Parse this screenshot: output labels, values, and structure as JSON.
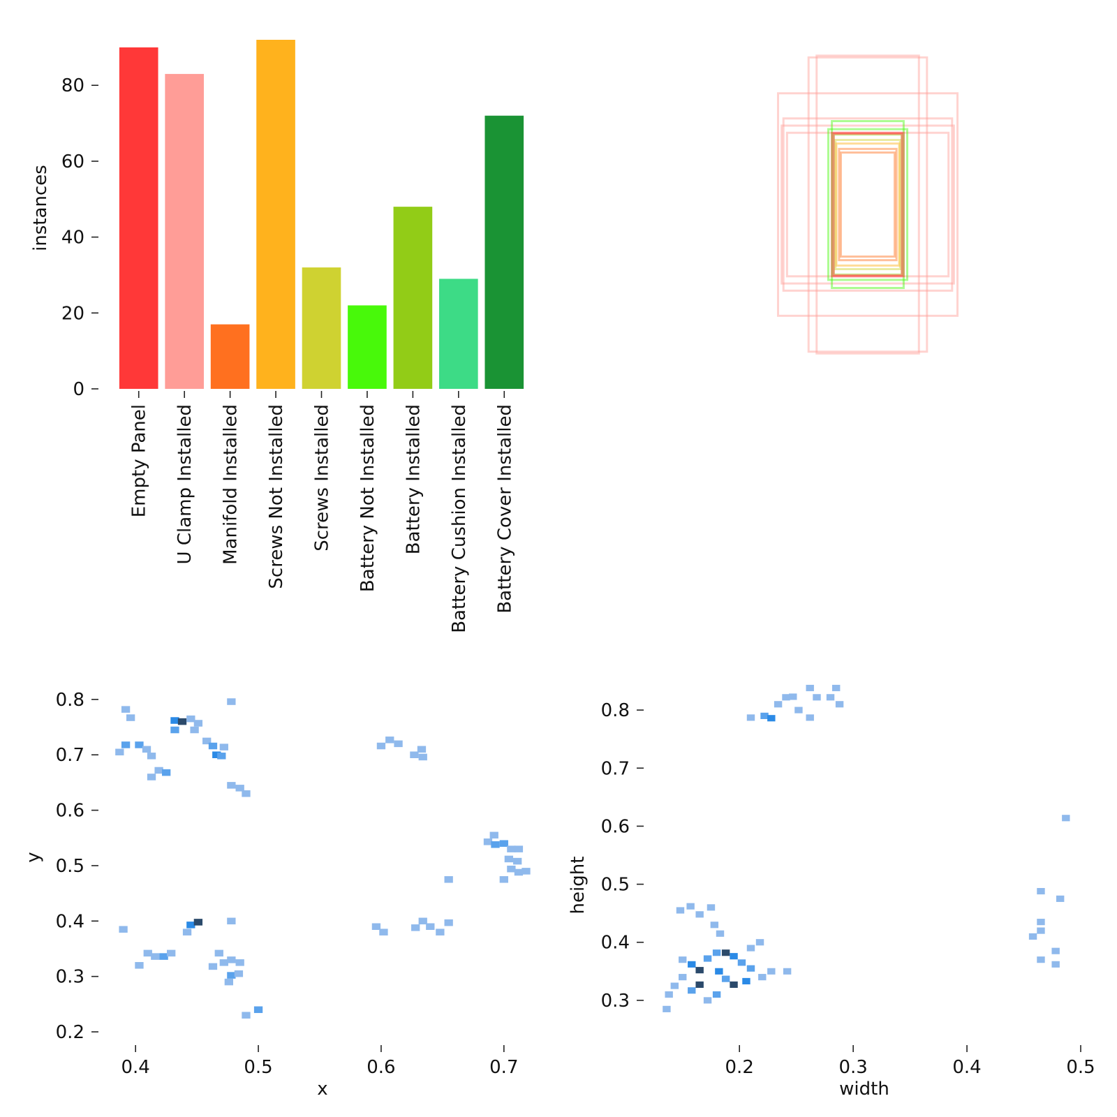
{
  "chart_data": [
    {
      "type": "bar",
      "ylabel": "instances",
      "ylim": [
        0,
        92
      ],
      "yticks": [
        "0",
        "20",
        "40",
        "60",
        "80"
      ],
      "categories": [
        "Empty Panel",
        "U Clamp Installed",
        "Manifold Installed",
        "Screws Not Installed",
        "Screws Installed",
        "Battery Not Installed",
        "Battery Installed",
        "Battery Cushion Installed",
        "Battery Cover Installed"
      ],
      "values": [
        90,
        83,
        17,
        92,
        32,
        22,
        48,
        29,
        72
      ],
      "colors": [
        "#ff3838",
        "#ff9d97",
        "#ff701f",
        "#ffb21d",
        "#cfd231",
        "#48f90a",
        "#92cc17",
        "#3ddb86",
        "#1a9334"
      ]
    },
    {
      "type": "box-overlay",
      "boxes": [
        {
          "w": 0.285,
          "h": 0.83,
          "color": "#ff9d97"
        },
        {
          "w": 0.33,
          "h": 0.82,
          "color": "#ff9d97"
        },
        {
          "w": 0.5,
          "h": 0.62,
          "color": "#ff9d97"
        },
        {
          "w": 0.47,
          "h": 0.48,
          "color": "#ff9d97"
        },
        {
          "w": 0.48,
          "h": 0.44,
          "color": "#ff9d97"
        },
        {
          "w": 0.45,
          "h": 0.4,
          "color": "#ff9d97"
        },
        {
          "w": 0.2,
          "h": 0.465,
          "color": "#48f90a"
        },
        {
          "w": 0.22,
          "h": 0.42,
          "color": "#48f90a"
        },
        {
          "w": 0.19,
          "h": 0.39,
          "color": "#92cc17"
        },
        {
          "w": 0.18,
          "h": 0.36,
          "color": "#cfd231"
        },
        {
          "w": 0.175,
          "h": 0.34,
          "color": "#ffb21d"
        },
        {
          "w": 0.19,
          "h": 0.395,
          "color": "#ff3838"
        },
        {
          "w": 0.2,
          "h": 0.4,
          "color": "#ff3838"
        },
        {
          "w": 0.15,
          "h": 0.29,
          "color": "#ff701f"
        },
        {
          "w": 0.16,
          "h": 0.31,
          "color": "#ff701f"
        }
      ]
    },
    {
      "type": "heatmap",
      "xlabel": "x",
      "ylabel": "y",
      "xlim": [
        0.38,
        0.72
      ],
      "ylim": [
        0.195,
        0.82
      ],
      "xticks": [
        "0.4",
        "0.5",
        "0.6",
        "0.7"
      ],
      "yticks": [
        "0.2",
        "0.3",
        "0.4",
        "0.5",
        "0.6",
        "0.7",
        "0.8"
      ],
      "cell": [
        0.007,
        0.012
      ],
      "cells": [
        [
          0.392,
          0.782,
          1
        ],
        [
          0.396,
          0.767,
          1
        ],
        [
          0.392,
          0.718,
          2
        ],
        [
          0.403,
          0.718,
          2
        ],
        [
          0.387,
          0.705,
          1
        ],
        [
          0.409,
          0.71,
          1
        ],
        [
          0.413,
          0.698,
          1
        ],
        [
          0.419,
          0.672,
          1
        ],
        [
          0.425,
          0.668,
          2
        ],
        [
          0.413,
          0.66,
          1
        ],
        [
          0.432,
          0.762,
          3
        ],
        [
          0.438,
          0.76,
          4
        ],
        [
          0.432,
          0.745,
          2
        ],
        [
          0.445,
          0.765,
          1
        ],
        [
          0.451,
          0.757,
          1
        ],
        [
          0.448,
          0.745,
          1
        ],
        [
          0.458,
          0.725,
          1
        ],
        [
          0.463,
          0.716,
          2
        ],
        [
          0.466,
          0.7,
          3
        ],
        [
          0.47,
          0.698,
          2
        ],
        [
          0.472,
          0.714,
          1
        ],
        [
          0.478,
          0.796,
          1
        ],
        [
          0.478,
          0.645,
          1
        ],
        [
          0.485,
          0.64,
          1
        ],
        [
          0.49,
          0.63,
          1
        ],
        [
          0.6,
          0.716,
          1
        ],
        [
          0.607,
          0.727,
          1
        ],
        [
          0.614,
          0.72,
          1
        ],
        [
          0.627,
          0.7,
          1
        ],
        [
          0.633,
          0.71,
          1
        ],
        [
          0.634,
          0.696,
          1
        ],
        [
          0.692,
          0.555,
          1
        ],
        [
          0.687,
          0.543,
          1
        ],
        [
          0.693,
          0.538,
          2
        ],
        [
          0.7,
          0.54,
          2
        ],
        [
          0.706,
          0.53,
          1
        ],
        [
          0.712,
          0.53,
          1
        ],
        [
          0.704,
          0.512,
          1
        ],
        [
          0.711,
          0.508,
          1
        ],
        [
          0.706,
          0.494,
          1
        ],
        [
          0.712,
          0.488,
          1
        ],
        [
          0.718,
          0.49,
          1
        ],
        [
          0.7,
          0.475,
          1
        ],
        [
          0.655,
          0.475,
          1
        ],
        [
          0.39,
          0.385,
          1
        ],
        [
          0.445,
          0.393,
          3
        ],
        [
          0.451,
          0.398,
          4
        ],
        [
          0.442,
          0.38,
          1
        ],
        [
          0.478,
          0.4,
          1
        ],
        [
          0.41,
          0.342,
          1
        ],
        [
          0.416,
          0.336,
          1
        ],
        [
          0.423,
          0.336,
          2
        ],
        [
          0.429,
          0.342,
          1
        ],
        [
          0.403,
          0.32,
          1
        ],
        [
          0.468,
          0.342,
          1
        ],
        [
          0.472,
          0.325,
          1
        ],
        [
          0.478,
          0.33,
          1
        ],
        [
          0.463,
          0.318,
          1
        ],
        [
          0.485,
          0.325,
          1
        ],
        [
          0.478,
          0.302,
          2
        ],
        [
          0.484,
          0.305,
          1
        ],
        [
          0.476,
          0.29,
          1
        ],
        [
          0.49,
          0.23,
          1
        ],
        [
          0.5,
          0.24,
          2
        ],
        [
          0.596,
          0.39,
          1
        ],
        [
          0.602,
          0.38,
          1
        ],
        [
          0.628,
          0.388,
          1
        ],
        [
          0.634,
          0.4,
          1
        ],
        [
          0.64,
          0.39,
          1
        ],
        [
          0.648,
          0.38,
          1
        ],
        [
          0.655,
          0.397,
          1
        ]
      ]
    },
    {
      "type": "heatmap",
      "xlabel": "width",
      "ylabel": "height",
      "xlim": [
        0.125,
        0.5
      ],
      "ylim": [
        0.265,
        0.835
      ],
      "xticks": [
        "0.2",
        "0.3",
        "0.4",
        "0.5"
      ],
      "yticks": [
        "0.3",
        "0.4",
        "0.5",
        "0.6",
        "0.7",
        "0.8"
      ],
      "cell": [
        0.007,
        0.011
      ],
      "cells": [
        [
          0.21,
          0.787,
          1
        ],
        [
          0.222,
          0.79,
          2
        ],
        [
          0.228,
          0.786,
          3
        ],
        [
          0.234,
          0.81,
          1
        ],
        [
          0.241,
          0.822,
          1
        ],
        [
          0.247,
          0.823,
          1
        ],
        [
          0.252,
          0.8,
          1
        ],
        [
          0.262,
          0.838,
          1
        ],
        [
          0.268,
          0.822,
          1
        ],
        [
          0.285,
          0.838,
          1
        ],
        [
          0.28,
          0.822,
          1
        ],
        [
          0.288,
          0.81,
          1
        ],
        [
          0.262,
          0.787,
          1
        ],
        [
          0.487,
          0.614,
          1
        ],
        [
          0.465,
          0.488,
          1
        ],
        [
          0.482,
          0.475,
          1
        ],
        [
          0.465,
          0.435,
          1
        ],
        [
          0.465,
          0.42,
          1
        ],
        [
          0.458,
          0.41,
          1
        ],
        [
          0.478,
          0.385,
          1
        ],
        [
          0.465,
          0.37,
          1
        ],
        [
          0.478,
          0.362,
          1
        ],
        [
          0.148,
          0.455,
          1
        ],
        [
          0.157,
          0.462,
          1
        ],
        [
          0.165,
          0.448,
          1
        ],
        [
          0.175,
          0.46,
          1
        ],
        [
          0.178,
          0.43,
          1
        ],
        [
          0.183,
          0.415,
          1
        ],
        [
          0.15,
          0.37,
          1
        ],
        [
          0.158,
          0.362,
          3
        ],
        [
          0.165,
          0.352,
          4
        ],
        [
          0.172,
          0.372,
          2
        ],
        [
          0.18,
          0.382,
          2
        ],
        [
          0.188,
          0.382,
          4
        ],
        [
          0.195,
          0.376,
          3
        ],
        [
          0.202,
          0.365,
          2
        ],
        [
          0.21,
          0.355,
          2
        ],
        [
          0.188,
          0.337,
          2
        ],
        [
          0.195,
          0.327,
          4
        ],
        [
          0.206,
          0.333,
          3
        ],
        [
          0.165,
          0.327,
          4
        ],
        [
          0.158,
          0.317,
          2
        ],
        [
          0.15,
          0.34,
          1
        ],
        [
          0.143,
          0.325,
          1
        ],
        [
          0.138,
          0.31,
          1
        ],
        [
          0.136,
          0.285,
          1
        ],
        [
          0.172,
          0.3,
          1
        ],
        [
          0.18,
          0.31,
          2
        ],
        [
          0.22,
          0.34,
          1
        ],
        [
          0.228,
          0.35,
          1
        ],
        [
          0.242,
          0.35,
          1
        ],
        [
          0.21,
          0.39,
          1
        ],
        [
          0.218,
          0.4,
          1
        ],
        [
          0.182,
          0.35,
          3
        ]
      ]
    }
  ]
}
